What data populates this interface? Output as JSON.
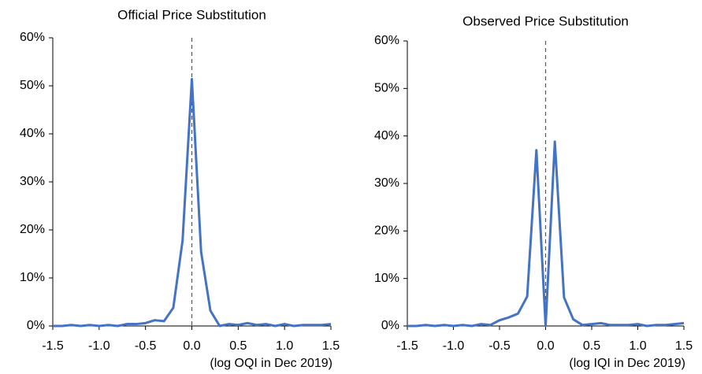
{
  "chart_data": [
    {
      "type": "line",
      "title": "Official Price Substitution",
      "x_label": "(log OQI in Dec 2019)",
      "x": [
        -1.5,
        -1.4,
        -1.3,
        -1.2,
        -1.1,
        -1.0,
        -0.9,
        -0.8,
        -0.7,
        -0.6,
        -0.5,
        -0.4,
        -0.3,
        -0.2,
        -0.1,
        0,
        0.1,
        0.2,
        0.3,
        0.4,
        0.5,
        0.6,
        0.7,
        0.8,
        0.9,
        1.0,
        1.1,
        1.2,
        1.3,
        1.4,
        1.5
      ],
      "series": [
        {
          "color": "#4472c4",
          "values": [
            0,
            0,
            0.2,
            0,
            0.2,
            0,
            0.2,
            0,
            0.4,
            0.4,
            0.6,
            1.2,
            1.0,
            3.8,
            17.8,
            51.4,
            15.4,
            3.2,
            0,
            0.4,
            0.2,
            0.6,
            0.2,
            0.4,
            0,
            0.4,
            0,
            0.2,
            0.2,
            0.2,
            0.4
          ]
        }
      ],
      "xlim": [
        -1.5,
        1.5
      ],
      "xticks": [
        -1.5,
        {
          "value": -1,
          "label": "-1.0"
        },
        -0.5,
        {
          "value": 0,
          "label": "0.0"
        },
        0.5,
        {
          "value": 1,
          "label": "1.0"
        },
        1.5
      ],
      "ylim": [
        0,
        60
      ],
      "yticks": [
        {
          "value": 0,
          "label": "0%"
        },
        {
          "value": 10,
          "label": "10%"
        },
        {
          "value": 20,
          "label": "20%"
        },
        {
          "value": 30,
          "label": "30%"
        },
        {
          "value": 40,
          "label": "40%"
        },
        {
          "value": 50,
          "label": "50%"
        },
        {
          "value": 60,
          "label": "60%"
        }
      ],
      "vline": 0
    },
    {
      "type": "line",
      "title": "Observed Price Substitution",
      "x_label": "(log IQI in Dec 2019)",
      "x": [
        -1.5,
        -1.4,
        -1.3,
        -1.2,
        -1.1,
        -1.0,
        -0.9,
        -0.8,
        -0.7,
        -0.6,
        -0.5,
        -0.4,
        -0.3,
        -0.2,
        -0.1,
        0,
        0.1,
        0.2,
        0.3,
        0.4,
        0.5,
        0.6,
        0.7,
        0.8,
        0.9,
        1.0,
        1.1,
        1.2,
        1.3,
        1.4,
        1.5
      ],
      "series": [
        {
          "color": "#4472c4",
          "values": [
            0,
            0,
            0.2,
            0,
            0.2,
            0,
            0.2,
            0,
            0.4,
            0.2,
            1.2,
            1.8,
            2.6,
            6.2,
            37,
            0,
            38.8,
            6,
            1.4,
            0.2,
            0.4,
            0.6,
            0.2,
            0.2,
            0.2,
            0.4,
            0,
            0.2,
            0.2,
            0.4,
            0.6
          ]
        }
      ],
      "xlim": [
        -1.5,
        1.5
      ],
      "xticks": [
        -1.5,
        {
          "value": -1,
          "label": "-1.0"
        },
        -0.5,
        {
          "value": 0,
          "label": "0.0"
        },
        0.5,
        {
          "value": 1,
          "label": "1.0"
        },
        1.5
      ],
      "ylim": [
        0,
        60
      ],
      "yticks": [
        {
          "value": 0,
          "label": "0%"
        },
        {
          "value": 10,
          "label": "10%"
        },
        {
          "value": 20,
          "label": "20%"
        },
        {
          "value": 30,
          "label": "30%"
        },
        {
          "value": 40,
          "label": "40%"
        },
        {
          "value": 50,
          "label": "50%"
        },
        {
          "value": 60,
          "label": "60%"
        }
      ],
      "vline": 0
    }
  ]
}
